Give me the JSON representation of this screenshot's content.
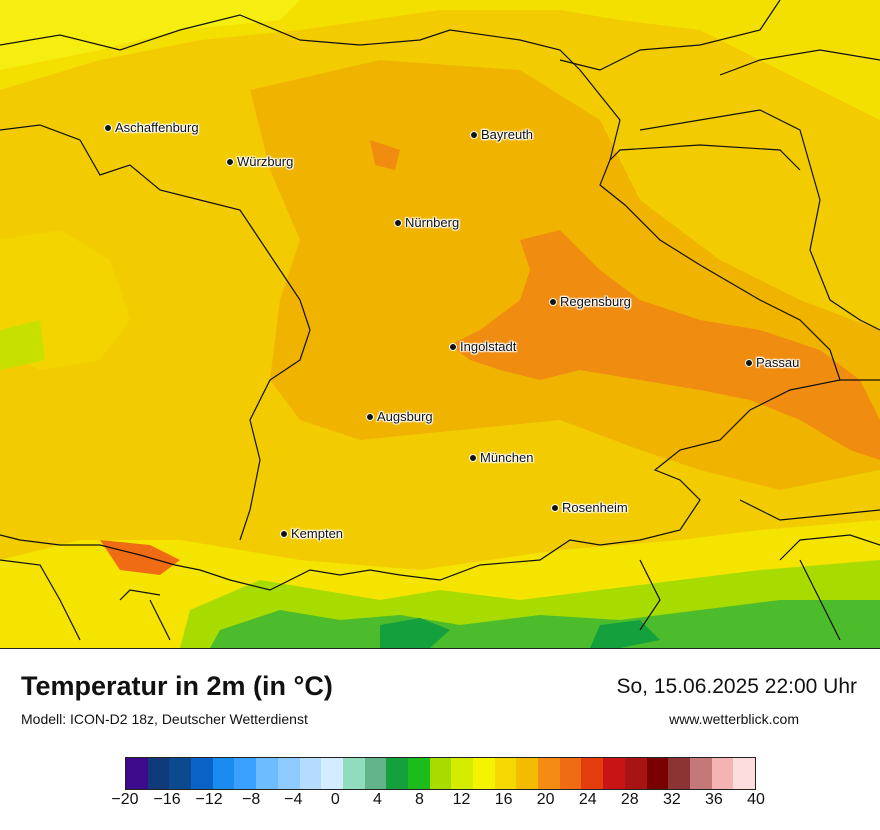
{
  "map": {
    "cities": [
      {
        "name": "Aschaffenburg",
        "key": "aschaffenburg"
      },
      {
        "name": "Würzburg",
        "key": "wuerzburg"
      },
      {
        "name": "Bayreuth",
        "key": "bayreuth"
      },
      {
        "name": "Nürnberg",
        "key": "nuernberg"
      },
      {
        "name": "Regensburg",
        "key": "regensburg"
      },
      {
        "name": "Ingolstadt",
        "key": "ingolstadt"
      },
      {
        "name": "Passau",
        "key": "passau"
      },
      {
        "name": "Augsburg",
        "key": "augsburg"
      },
      {
        "name": "München",
        "key": "muenchen"
      },
      {
        "name": "Rosenheim",
        "key": "rosenheim"
      },
      {
        "name": "Kempten",
        "key": "kempten"
      }
    ],
    "colors": {
      "yellow": "#f5e800",
      "yellow_orange": "#f2d000",
      "orange_light": "#f0b800",
      "orange": "#f08a10",
      "green_light": "#c8e000",
      "green": "#1aa82a",
      "border": "#111111"
    }
  },
  "footer": {
    "title": "Temperatur in 2m (in °C)",
    "model": "Modell: ICON-D2 18z, Deutscher Wetterdienst",
    "datetime": "So, 15.06.2025 22:00 Uhr",
    "website": "www.wetterblick.com"
  },
  "legend": {
    "colors": [
      "#3d0a8c",
      "#103a7a",
      "#0b4a8e",
      "#0a64c8",
      "#1a8cf0",
      "#3aa0ff",
      "#6cbcff",
      "#8ccaff",
      "#b4dcff",
      "#d4ecff",
      "#90dcbc",
      "#60b488",
      "#14a03c",
      "#1cbc1c",
      "#a8dc00",
      "#d4ec00",
      "#f4f400",
      "#f4d800",
      "#f4bc00",
      "#f48c14",
      "#f06c14",
      "#e43c0c",
      "#c81414",
      "#a81414",
      "#780000",
      "#8c3434",
      "#c47878",
      "#f4b4b4",
      "#fcdcdc"
    ],
    "ticks": [
      "−20",
      "−16",
      "−12",
      "−8",
      "−4",
      "0",
      "4",
      "8",
      "12",
      "16",
      "20",
      "24",
      "28",
      "32",
      "36",
      "40"
    ]
  }
}
